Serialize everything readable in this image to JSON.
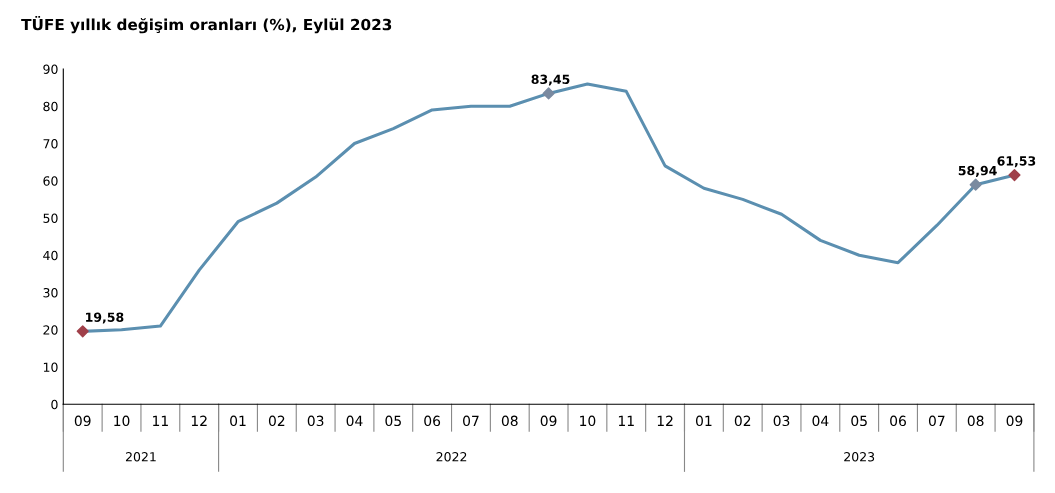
{
  "chart_data": {
    "type": "line",
    "title": "TÜFE yıllık değişim oranları (%), Eylül 2023",
    "categories": [
      "09",
      "10",
      "11",
      "12",
      "01",
      "02",
      "03",
      "04",
      "05",
      "06",
      "07",
      "08",
      "09",
      "10",
      "11",
      "12",
      "01",
      "02",
      "03",
      "04",
      "05",
      "06",
      "07",
      "08",
      "09"
    ],
    "annotations": [
      "2021",
      "2022",
      "2023"
    ],
    "series": [
      {
        "color": "#5b8fb0",
        "values": [
          19.58,
          20,
          21,
          36,
          49,
          54,
          61,
          70,
          74,
          79,
          80,
          80,
          83.45,
          86,
          84,
          64,
          58,
          55,
          51,
          44,
          40,
          38,
          48,
          58.94,
          61.53
        ],
        "value_labels": [
          "19,58",
          null,
          null,
          null,
          null,
          null,
          null,
          null,
          null,
          null,
          null,
          null,
          "83,45",
          null,
          null,
          null,
          null,
          null,
          null,
          null,
          null,
          null,
          null,
          "58,94",
          "61,53"
        ]
      },
      {
        "type": "scatter",
        "marker": "diamond",
        "colors": [
          "#a0404a",
          null,
          null,
          null,
          null,
          null,
          null,
          null,
          null,
          null,
          null,
          null,
          "#7a8aa0",
          null,
          null,
          null,
          null,
          null,
          null,
          null,
          null,
          null,
          null,
          "#7a8aa0",
          "#a0404a"
        ],
        "values": [
          19.58,
          null,
          null,
          null,
          null,
          null,
          null,
          null,
          null,
          null,
          null,
          null,
          83.45,
          null,
          null,
          null,
          null,
          null,
          null,
          null,
          null,
          null,
          null,
          58.94,
          61.53
        ]
      }
    ],
    "ylim": [
      0,
      90
    ],
    "yticks": [
      0,
      10,
      20,
      30,
      40,
      50,
      60,
      70,
      80,
      90
    ]
  }
}
